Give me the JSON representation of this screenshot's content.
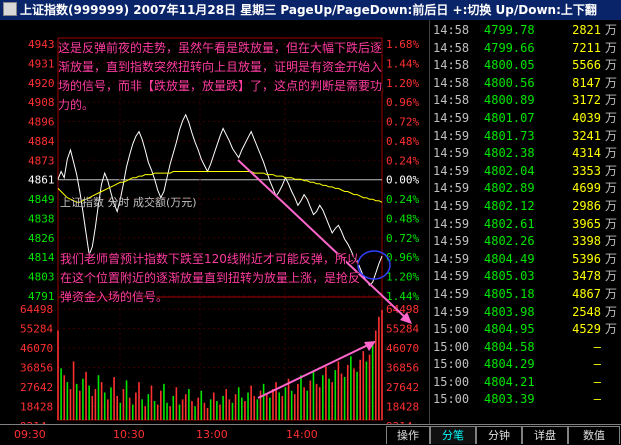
{
  "title_bar": {
    "text": "上证指数(999999) 2007年11月28日 星期三 PageUp/PageDown:前后日 +:切换 Up/Down:上下翻"
  },
  "colors": {
    "up": "#ff3030",
    "down": "#00e600",
    "price_line": "#ffffff",
    "avg_line": "#ffff00",
    "annotation": "#ff3ca0",
    "axis_text": "#ff3030"
  },
  "chart_data": [
    {
      "type": "line",
      "price_axis_labels": [
        "4943",
        "4931",
        "4920",
        "4908",
        "4896",
        "4884",
        "4873",
        "4861",
        "4849",
        "4838",
        "4826",
        "4814",
        "4803",
        "4791"
      ],
      "pct_axis_labels": [
        "1.68%",
        "1.44%",
        "1.20%",
        "0.96%",
        "0.72%",
        "0.48%",
        "0.24%",
        "0.00%",
        "0.24%",
        "0.48%",
        "0.72%",
        "0.96%",
        "1.20%",
        "1.44%"
      ],
      "ylim": [
        4785,
        4949
      ],
      "baseline": 4861,
      "x_ticks": [
        "09:30",
        "10:30",
        "13:00",
        "14:00"
      ],
      "series": [
        {
          "values": [
            4861,
            4866,
            4862,
            4874,
            4880,
            4872,
            4864,
            4853,
            4840,
            4826,
            4812,
            4817,
            4830,
            4845,
            4858,
            4865,
            4860,
            4852,
            4845,
            4840,
            4848,
            4858,
            4869,
            4877,
            4884,
            4889,
            4892,
            4887,
            4880,
            4872,
            4867,
            4861,
            4854,
            4849,
            4853,
            4862,
            4871,
            4878,
            4885,
            4893,
            4899,
            4903,
            4898,
            4891,
            4885,
            4880,
            4874,
            4870,
            4866,
            4871,
            4877,
            4883,
            4889,
            4894,
            4890,
            4886,
            4881,
            4878,
            4875,
            4880,
            4884,
            4888,
            4892,
            4887,
            4882,
            4877,
            4872,
            4866,
            4860,
            4855,
            4850,
            4853,
            4857,
            4862,
            4858,
            4853,
            4849,
            4844,
            4847,
            4851,
            4848,
            4843,
            4838,
            4840,
            4844,
            4841,
            4836,
            4831,
            4826,
            4829,
            4831,
            4827,
            4822,
            4819,
            4815,
            4810,
            4808,
            4803,
            4798,
            4795,
            4792,
            4794,
            4800,
            4806,
            4811
          ]
        },
        {
          "values": [
            4855,
            4853,
            4851,
            4849,
            4848,
            4847,
            4846,
            4846,
            4847,
            4848,
            4849,
            4850,
            4851,
            4852,
            4853,
            4854,
            4855,
            4856,
            4857,
            4858,
            4859,
            4859,
            4860,
            4861,
            4862,
            4862,
            4863,
            4863,
            4864,
            4864,
            4864,
            4865,
            4865,
            4865,
            4865,
            4865,
            4865,
            4866,
            4866,
            4866,
            4866,
            4866,
            4866,
            4866,
            4866,
            4866,
            4866,
            4866,
            4866,
            4866,
            4866,
            4866,
            4866,
            4866,
            4866,
            4866,
            4866,
            4866,
            4866,
            4866,
            4866,
            4866,
            4866,
            4865,
            4865,
            4865,
            4865,
            4864,
            4864,
            4864,
            4863,
            4863,
            4863,
            4862,
            4862,
            4862,
            4861,
            4861,
            4861,
            4860,
            4860,
            4859,
            4859,
            4858,
            4858,
            4857,
            4857,
            4856,
            4856,
            4855,
            4855,
            4854,
            4853,
            4853,
            4852,
            4851,
            4851,
            4850,
            4849,
            4849,
            4848,
            4848,
            4847,
            4847,
            4846
          ]
        }
      ]
    },
    {
      "type": "bar",
      "pane_label": "上证指数  分时 成交额(万元)",
      "vol_axis_labels": [
        "64498",
        "55284",
        "46070",
        "36856",
        "27642",
        "18428",
        "9214"
      ],
      "ylim": [
        0,
        64498
      ],
      "values": [
        52000,
        30000,
        26000,
        22000,
        18000,
        34000,
        21000,
        17000,
        24000,
        28000,
        20000,
        14000,
        18000,
        26000,
        22000,
        16000,
        12000,
        19000,
        25000,
        14000,
        10000,
        18000,
        23000,
        13000,
        9000,
        16000,
        22000,
        12000,
        8000,
        15000,
        20000,
        11000,
        9000,
        17000,
        21000,
        10000,
        8000,
        14000,
        19000,
        9000,
        12000,
        15000,
        18000,
        11000,
        8000,
        13000,
        17000,
        10000,
        7000,
        12000,
        16000,
        11000,
        9000,
        14000,
        18000,
        12000,
        10000,
        15000,
        19000,
        13000,
        11000,
        16000,
        20000,
        14000,
        12000,
        17000,
        21000,
        15000,
        13000,
        18000,
        22000,
        16000,
        14000,
        19000,
        24000,
        17000,
        15000,
        21000,
        26000,
        19000,
        17000,
        23000,
        28000,
        21000,
        19000,
        26000,
        31000,
        24000,
        22000,
        29000,
        34000,
        27000,
        25000,
        32000,
        37000,
        30000,
        28000,
        35000,
        40000,
        34000,
        38000,
        44000,
        52000,
        60000,
        64000
      ],
      "colors_up": [
        1,
        0,
        1,
        0,
        1,
        1,
        0,
        1,
        0,
        1,
        0,
        1,
        1,
        0,
        1,
        0,
        1,
        0,
        1,
        1,
        0,
        1,
        0,
        1,
        0,
        1,
        1,
        0,
        1,
        0,
        1,
        0,
        1,
        1,
        0,
        0,
        1,
        0,
        1,
        0,
        1,
        1,
        0,
        1,
        0,
        1,
        0,
        1,
        1,
        0,
        1,
        0,
        1,
        0,
        1,
        1,
        0,
        1,
        0,
        0,
        1,
        0,
        1,
        1,
        0,
        1,
        0,
        1,
        0,
        1,
        1,
        0,
        1,
        0,
        1,
        0,
        1,
        1,
        0,
        1,
        0,
        1,
        0,
        1,
        1,
        0,
        1,
        0,
        1,
        0,
        1,
        1,
        0,
        1,
        0,
        1,
        0,
        1,
        1,
        0,
        1,
        0,
        1,
        1,
        1
      ]
    }
  ],
  "ticks": [
    {
      "time": "14:58",
      "price": "4799.78",
      "vol": "2821",
      "unit": "万"
    },
    {
      "time": "14:58",
      "price": "4799.66",
      "vol": "7211",
      "unit": "万"
    },
    {
      "time": "14:58",
      "price": "4800.05",
      "vol": "5566",
      "unit": "万"
    },
    {
      "time": "14:58",
      "price": "4800.56",
      "vol": "8147",
      "unit": "万"
    },
    {
      "time": "14:58",
      "price": "4800.89",
      "vol": "3172",
      "unit": "万"
    },
    {
      "time": "14:59",
      "price": "4801.07",
      "vol": "4039",
      "unit": "万"
    },
    {
      "time": "14:59",
      "price": "4801.73",
      "vol": "3241",
      "unit": "万"
    },
    {
      "time": "14:59",
      "price": "4802.38",
      "vol": "4314",
      "unit": "万"
    },
    {
      "time": "14:59",
      "price": "4802.04",
      "vol": "3353",
      "unit": "万"
    },
    {
      "time": "14:59",
      "price": "4802.89",
      "vol": "4699",
      "unit": "万"
    },
    {
      "time": "14:59",
      "price": "4802.12",
      "vol": "2986",
      "unit": "万"
    },
    {
      "time": "14:59",
      "price": "4802.61",
      "vol": "3965",
      "unit": "万"
    },
    {
      "time": "14:59",
      "price": "4802.26",
      "vol": "3398",
      "unit": "万"
    },
    {
      "time": "14:59",
      "price": "4804.49",
      "vol": "5396",
      "unit": "万"
    },
    {
      "time": "14:59",
      "price": "4805.03",
      "vol": "3478",
      "unit": "万"
    },
    {
      "time": "14:59",
      "price": "4805.18",
      "vol": "4867",
      "unit": "万"
    },
    {
      "time": "14:59",
      "price": "4803.98",
      "vol": "2548",
      "unit": "万"
    },
    {
      "time": "15:00",
      "price": "4804.95",
      "vol": "4529",
      "unit": "万"
    },
    {
      "time": "15:00",
      "price": "4804.58",
      "vol": "—",
      "unit": ""
    },
    {
      "time": "15:00",
      "price": "4804.29",
      "vol": "—",
      "unit": ""
    },
    {
      "time": "15:00",
      "price": "4804.21",
      "vol": "—",
      "unit": ""
    },
    {
      "time": "15:00",
      "price": "4803.39",
      "vol": "—",
      "unit": ""
    }
  ],
  "annotations": {
    "note1": "这是反弹前夜的走势，虽然午看是跌放量，但在大幅下跌后逐渐放量，直到指数突然扭转向上且放量，证明是有资金开始入场的信号，而非【跌放量，放量跌】了，这点的判断是需要功力的。",
    "note2": "我们老师曾预计指数下跌至120线附近才可能反弹，所以在这个位置附近的逐渐放量直到扭转为放量上涨，是抢反弹资金入场的信号。"
  },
  "bottom_bar": {
    "times": [
      "09:30",
      "10:30",
      "13:00",
      "14:00"
    ],
    "tabs": [
      "操作",
      "分笔",
      "分钟",
      "详盘",
      "数值"
    ],
    "active_tab": "分笔"
  }
}
